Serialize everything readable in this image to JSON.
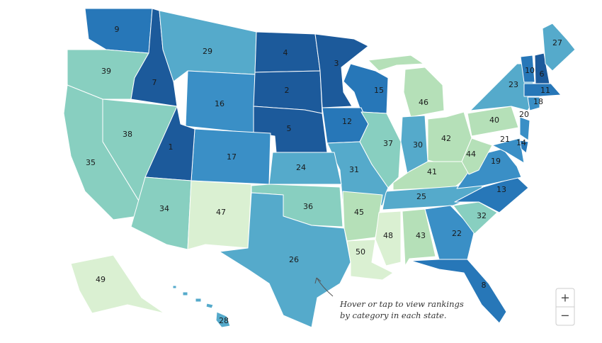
{
  "map": {
    "regions": [
      {
        "rank": 9,
        "color": "#2777b8"
      },
      {
        "rank": 39,
        "color": "#88cfc0"
      },
      {
        "rank": 7,
        "color": "#1c5a9b"
      },
      {
        "rank": 29,
        "color": "#55aacb"
      },
      {
        "rank": 16,
        "color": "#3a8fc6"
      },
      {
        "rank": 4,
        "color": "#1c5a9b"
      },
      {
        "rank": 2,
        "color": "#1c5a9b"
      },
      {
        "rank": 5,
        "color": "#1c5a9b"
      },
      {
        "rank": 3,
        "color": "#1c5a9b"
      },
      {
        "rank": 15,
        "color": "#2777b8"
      },
      {
        "rank": 12,
        "color": "#2777b8"
      },
      {
        "rank": 37,
        "color": "#88cfc0"
      },
      {
        "rank": 46,
        "color": "#b5e0b8"
      },
      {
        "rank": 30,
        "color": "#55aacb"
      },
      {
        "rank": 42,
        "color": "#b5e0b8"
      },
      {
        "rank": 41,
        "color": "#b5e0b8"
      },
      {
        "rank": 25,
        "color": "#55aacb"
      },
      {
        "rank": 31,
        "color": "#55aacb"
      },
      {
        "rank": 24,
        "color": "#55aacb"
      },
      {
        "rank": 17,
        "color": "#3a8fc6"
      },
      {
        "rank": 1,
        "color": "#1c5a9b"
      },
      {
        "rank": 38,
        "color": "#88cfc0"
      },
      {
        "rank": 35,
        "color": "#88cfc0"
      },
      {
        "rank": 34,
        "color": "#88cfc0"
      },
      {
        "rank": 47,
        "color": "#daf0d2"
      },
      {
        "rank": 36,
        "color": "#88cfc0"
      },
      {
        "rank": 26,
        "color": "#55aacb"
      },
      {
        "rank": 45,
        "color": "#b5e0b8"
      },
      {
        "rank": 50,
        "color": "#daf0d2"
      },
      {
        "rank": 48,
        "color": "#daf0d2"
      },
      {
        "rank": 43,
        "color": "#b5e0b8"
      },
      {
        "rank": 22,
        "color": "#3a8fc6"
      },
      {
        "rank": 8,
        "color": "#2777b8"
      },
      {
        "rank": 32,
        "color": "#88cfc0"
      },
      {
        "rank": 13,
        "color": "#2777b8"
      },
      {
        "rank": 19,
        "color": "#3a8fc6"
      },
      {
        "rank": 44,
        "color": "#b5e0b8"
      },
      {
        "rank": 40,
        "color": "#b5e0b8"
      },
      {
        "rank": 23,
        "color": "#55aacb"
      },
      {
        "rank": 21,
        "color": "#3a8fc6"
      },
      {
        "rank": 20,
        "color": "#3a8fc6"
      },
      {
        "rank": 14,
        "color": "#2777b8"
      },
      {
        "rank": 10,
        "color": "#2777b8"
      },
      {
        "rank": 6,
        "color": "#1c5a9b"
      },
      {
        "rank": 27,
        "color": "#55aacb"
      },
      {
        "rank": 11,
        "color": "#2777b8"
      },
      {
        "rank": 18,
        "color": "#3a8fc6"
      },
      {
        "rank": 49,
        "color": "#daf0d2"
      },
      {
        "rank": 28,
        "color": "#55aacb"
      }
    ],
    "annotation": [
      "Hover or tap to view rankings",
      "by category in each state."
    ],
    "zoom_in": "+",
    "zoom_out": "−"
  }
}
